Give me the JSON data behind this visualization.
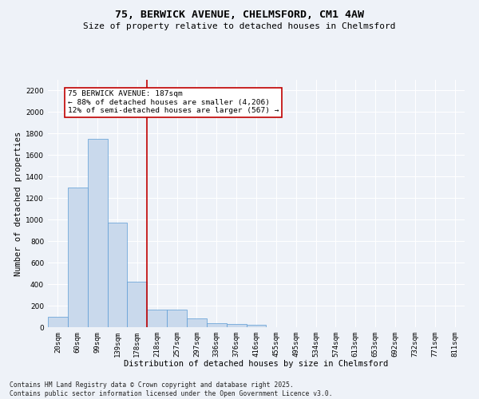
{
  "title1": "75, BERWICK AVENUE, CHELMSFORD, CM1 4AW",
  "title2": "Size of property relative to detached houses in Chelmsford",
  "xlabel": "Distribution of detached houses by size in Chelmsford",
  "ylabel": "Number of detached properties",
  "categories": [
    "20sqm",
    "60sqm",
    "99sqm",
    "139sqm",
    "178sqm",
    "218sqm",
    "257sqm",
    "297sqm",
    "336sqm",
    "376sqm",
    "416sqm",
    "455sqm",
    "495sqm",
    "534sqm",
    "574sqm",
    "613sqm",
    "653sqm",
    "692sqm",
    "732sqm",
    "771sqm",
    "811sqm"
  ],
  "values": [
    100,
    1300,
    1750,
    975,
    420,
    160,
    160,
    80,
    40,
    30,
    20,
    0,
    0,
    0,
    0,
    0,
    0,
    0,
    0,
    0,
    0
  ],
  "bar_color": "#c9d9ec",
  "bar_edge_color": "#5b9bd5",
  "vline_x_index": 4.5,
  "vline_color": "#c00000",
  "annotation_text": "75 BERWICK AVENUE: 187sqm\n← 88% of detached houses are smaller (4,206)\n12% of semi-detached houses are larger (567) →",
  "annotation_box_color": "#ffffff",
  "annotation_box_edge": "#c00000",
  "ylim": [
    0,
    2300
  ],
  "yticks": [
    0,
    200,
    400,
    600,
    800,
    1000,
    1200,
    1400,
    1600,
    1800,
    2000,
    2200
  ],
  "footer1": "Contains HM Land Registry data © Crown copyright and database right 2025.",
  "footer2": "Contains public sector information licensed under the Open Government Licence v3.0.",
  "bg_color": "#eef2f8",
  "grid_color": "#ffffff",
  "title_fontsize": 9.5,
  "subtitle_fontsize": 8,
  "axis_label_fontsize": 7.5,
  "tick_fontsize": 6.5,
  "annotation_fontsize": 6.8,
  "footer_fontsize": 5.8
}
